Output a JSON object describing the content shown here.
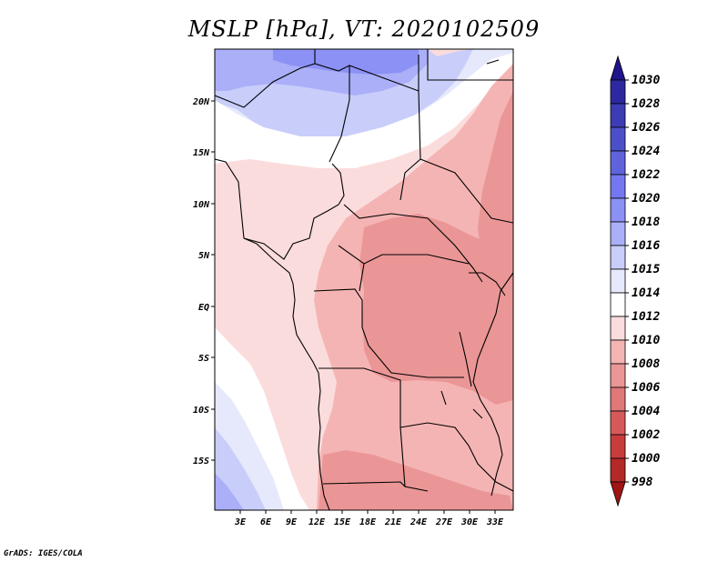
{
  "title": "MSLP [hPa], VT: 2020102509",
  "footer": "GrADS: IGES/COLA",
  "lat_ticks": [
    "20N",
    "15N",
    "10N",
    "5N",
    "EQ",
    "5S",
    "10S",
    "15S"
  ],
  "lon_ticks": [
    "3E",
    "6E",
    "9E",
    "12E",
    "15E",
    "18E",
    "21E",
    "24E",
    "27E",
    "30E",
    "33E"
  ],
  "colorbar": {
    "levels": [
      "1030",
      "1028",
      "1026",
      "1024",
      "1022",
      "1020",
      "1018",
      "1016",
      "1015",
      "1014",
      "1012",
      "1010",
      "1008",
      "1006",
      "1004",
      "1002",
      "1000",
      "998"
    ],
    "colors": [
      "#20148c",
      "#2d28a0",
      "#3c3cb4",
      "#4b50c8",
      "#5f64dc",
      "#7378f0",
      "#8c91f5",
      "#aaaff8",
      "#c8cdfa",
      "#e6e8fc",
      "#ffffff",
      "#fbdcdc",
      "#f5b4b4",
      "#eb9696",
      "#e17878",
      "#d75a5a",
      "#c83c3c",
      "#b42828",
      "#a01414"
    ]
  },
  "colors": {
    "blue_strong": "#8c91f5",
    "blue_mid": "#aaaff8",
    "blue_light": "#c8cdfa",
    "blue_pale": "#e6e8fc",
    "white": "#ffffff",
    "pink_pale": "#fbdcdc",
    "pink_mid": "#f5b4b4",
    "pink_strong": "#eb9696"
  }
}
